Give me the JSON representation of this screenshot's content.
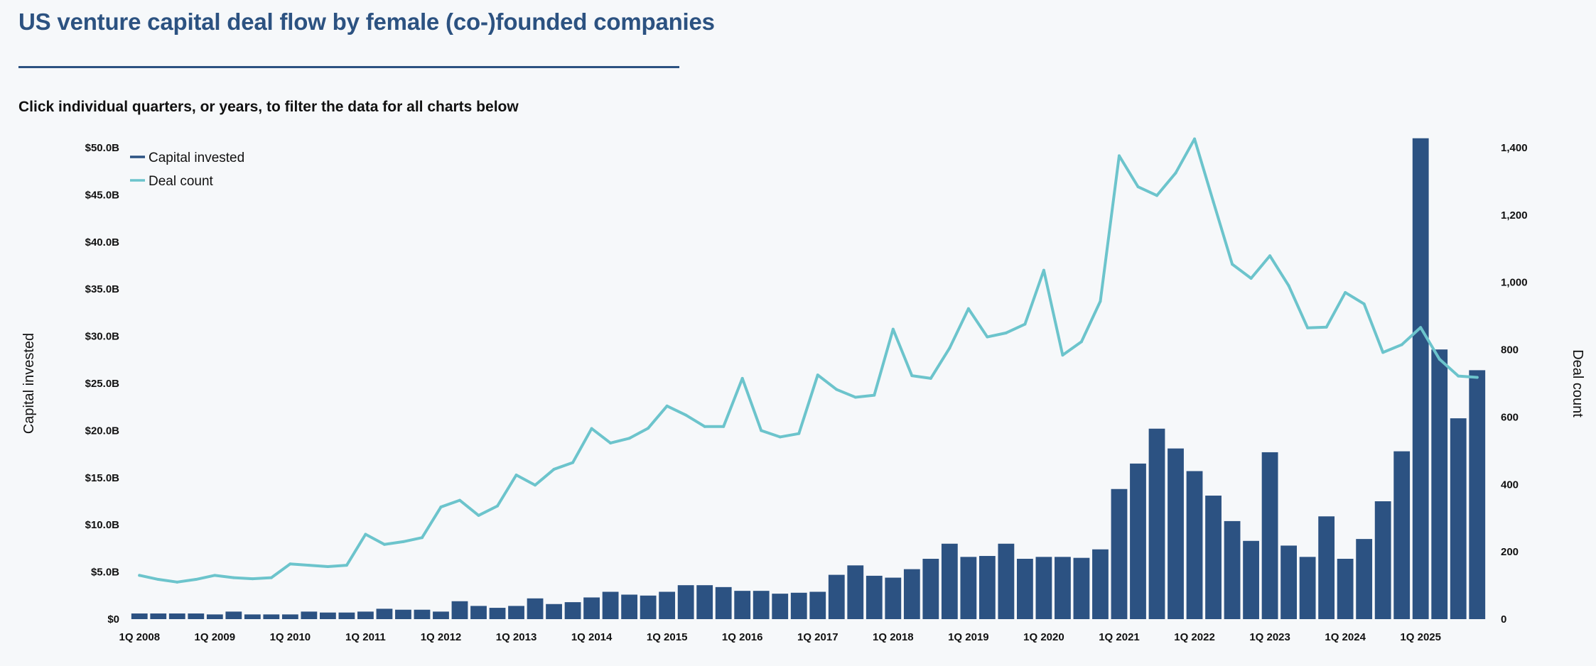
{
  "page": {
    "title": "US venture capital deal flow by female (co-)founded companies",
    "subtitle": "Click individual quarters, or years, to filter the data for all charts below"
  },
  "colors": {
    "bar": "#2c5282",
    "line": "#6cc4cc",
    "title": "#2c5281"
  },
  "chart_data": {
    "type": "bar+line",
    "title": "US venture capital deal flow by female (co-)founded companies",
    "ylabel_left": "Capital invested",
    "ylabel_right": "Deal count",
    "ylim_left": [
      0,
      50
    ],
    "ylim_right": [
      0,
      1400
    ],
    "yticks_left": [
      "$0",
      "$5.0B",
      "$10.0B",
      "$15.0B",
      "$20.0B",
      "$25.0B",
      "$30.0B",
      "$35.0B",
      "$40.0B",
      "$45.0B",
      "$50.0B"
    ],
    "yticks_left_values": [
      0,
      5,
      10,
      15,
      20,
      25,
      30,
      35,
      40,
      45,
      50
    ],
    "yticks_right": [
      "0",
      "200",
      "400",
      "600",
      "800",
      "1,000",
      "1,200",
      "1,400"
    ],
    "yticks_right_values": [
      0,
      200,
      400,
      600,
      800,
      1000,
      1200,
      1400
    ],
    "xtick_labels": [
      "1Q 2008",
      "1Q 2009",
      "1Q 2010",
      "1Q 2011",
      "1Q 2012",
      "1Q 2013",
      "1Q 2014",
      "1Q 2015",
      "1Q 2016",
      "1Q 2017",
      "1Q 2018",
      "1Q 2019",
      "1Q 2020",
      "1Q 2021",
      "1Q 2022",
      "1Q 2023",
      "1Q 2024",
      "1Q 2025"
    ],
    "legend": [
      {
        "label": "Capital invested",
        "key": "bar"
      },
      {
        "label": "Deal count",
        "key": "line"
      }
    ],
    "legend_position": "top-left",
    "categories": [
      "1Q 2008",
      "2Q 2008",
      "3Q 2008",
      "4Q 2008",
      "1Q 2009",
      "2Q 2009",
      "3Q 2009",
      "4Q 2009",
      "1Q 2010",
      "2Q 2010",
      "3Q 2010",
      "4Q 2010",
      "1Q 2011",
      "2Q 2011",
      "3Q 2011",
      "4Q 2011",
      "1Q 2012",
      "2Q 2012",
      "3Q 2012",
      "4Q 2012",
      "1Q 2013",
      "2Q 2013",
      "3Q 2013",
      "4Q 2013",
      "1Q 2014",
      "2Q 2014",
      "3Q 2014",
      "4Q 2014",
      "1Q 2015",
      "2Q 2015",
      "3Q 2015",
      "4Q 2015",
      "1Q 2016",
      "2Q 2016",
      "3Q 2016",
      "4Q 2016",
      "1Q 2017",
      "2Q 2017",
      "3Q 2017",
      "4Q 2017",
      "1Q 2018",
      "2Q 2018",
      "3Q 2018",
      "4Q 2018",
      "1Q 2019",
      "2Q 2019",
      "3Q 2019",
      "4Q 2019",
      "1Q 2020",
      "2Q 2020",
      "3Q 2020",
      "4Q 2020",
      "1Q 2021",
      "2Q 2021",
      "3Q 2021",
      "4Q 2021",
      "1Q 2022",
      "2Q 2022",
      "3Q 2022",
      "4Q 2022",
      "1Q 2023",
      "2Q 2023",
      "3Q 2023",
      "4Q 2023",
      "1Q 2024",
      "2Q 2024",
      "3Q 2024",
      "4Q 2024",
      "1Q 2025",
      "2Q 2025",
      "3Q 2025",
      "4Q 2025"
    ],
    "series": [
      {
        "name": "Capital invested",
        "type": "bar",
        "axis": "left",
        "unit": "$B",
        "values": [
          0.6,
          0.6,
          0.6,
          0.6,
          0.5,
          0.8,
          0.5,
          0.5,
          0.5,
          0.8,
          0.7,
          0.7,
          0.8,
          1.1,
          1.0,
          1.0,
          0.8,
          1.9,
          1.4,
          1.2,
          1.4,
          2.2,
          1.6,
          1.8,
          2.3,
          2.9,
          2.6,
          2.5,
          2.9,
          3.6,
          3.6,
          3.4,
          3.0,
          3.0,
          2.7,
          2.8,
          2.9,
          4.7,
          5.7,
          4.6,
          4.4,
          5.3,
          6.4,
          8.0,
          6.6,
          6.7,
          8.0,
          6.4,
          6.6,
          6.6,
          6.5,
          7.4,
          13.8,
          16.5,
          20.2,
          18.1,
          15.7,
          13.1,
          10.4,
          8.3,
          17.7,
          7.8,
          6.6,
          10.9,
          6.4,
          8.5,
          12.5,
          17.8,
          51.0,
          28.6,
          21.3,
          26.4
        ]
      },
      {
        "name": "Deal count",
        "type": "line",
        "axis": "right",
        "values": [
          130,
          118,
          110,
          118,
          130,
          123,
          120,
          123,
          164,
          160,
          156,
          160,
          252,
          222,
          230,
          242,
          333,
          353,
          308,
          336,
          428,
          398,
          445,
          465,
          566,
          523,
          537,
          567,
          633,
          606,
          572,
          572,
          715,
          560,
          541,
          551,
          725,
          682,
          659,
          665,
          861,
          723,
          715,
          805,
          922,
          838,
          850,
          876,
          1036,
          784,
          824,
          944,
          1376,
          1284,
          1258,
          1325,
          1426,
          1239,
          1054,
          1012,
          1079,
          990,
          865,
          867,
          970,
          936,
          792,
          815,
          866,
          772,
          722,
          718
        ]
      }
    ]
  }
}
